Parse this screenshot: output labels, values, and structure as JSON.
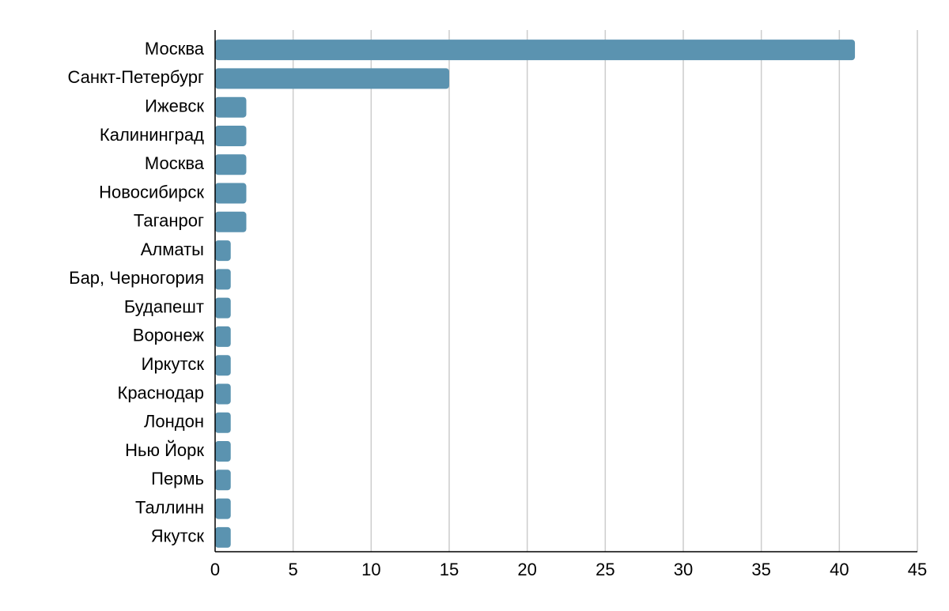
{
  "chart_data": {
    "type": "bar",
    "orientation": "horizontal",
    "categories": [
      "Москва",
      "Санкт-Петербург",
      "Ижевск",
      "Калининград",
      "Москва",
      "Новосибирск",
      "Таганрог",
      "Алматы",
      "Бар, Черногория",
      "Будапешт",
      "Воронеж",
      "Иркутск",
      "Краснодар",
      "Лондон",
      "Нью Йорк",
      "Пермь",
      "Таллинн",
      "Якутск"
    ],
    "values": [
      41,
      15,
      2,
      2,
      2,
      2,
      2,
      1,
      1,
      1,
      1,
      1,
      1,
      1,
      1,
      1,
      1,
      1
    ],
    "color": "#5b93b0",
    "xlim": [
      0,
      45
    ],
    "xticks": [
      0,
      5,
      10,
      15,
      20,
      25,
      30,
      35,
      40,
      45
    ],
    "grid": true
  }
}
